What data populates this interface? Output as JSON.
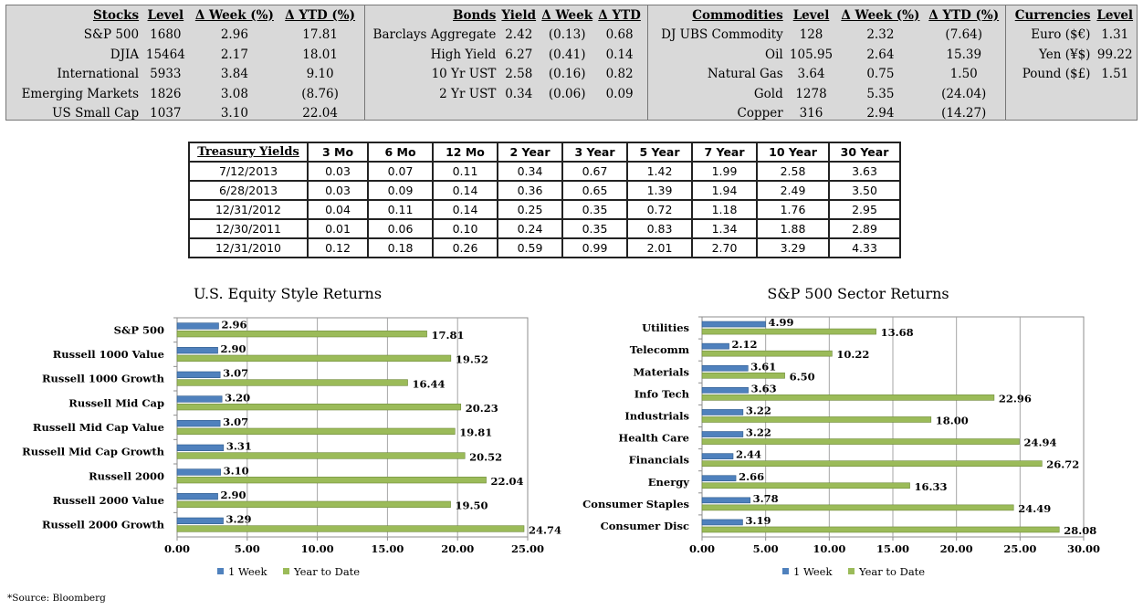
{
  "markets": {
    "stocks": {
      "headers": [
        "Stocks",
        "Level",
        "Δ Week (%)",
        "Δ YTD (%)"
      ],
      "rows": [
        [
          "S&P 500",
          "1680",
          "2.96",
          "17.81"
        ],
        [
          "DJIA",
          "15464",
          "2.17",
          "18.01"
        ],
        [
          "International",
          "5933",
          "3.84",
          "9.10"
        ],
        [
          "Emerging Markets",
          "1826",
          "3.08",
          "(8.76)"
        ],
        [
          "US Small Cap",
          "1037",
          "3.10",
          "22.04"
        ]
      ]
    },
    "bonds": {
      "headers": [
        "Bonds",
        "Yield",
        "Δ Week",
        "Δ YTD"
      ],
      "rows": [
        [
          "Barclays Aggregate",
          "2.42",
          "(0.13)",
          "0.68"
        ],
        [
          "High Yield",
          "6.27",
          "(0.41)",
          "0.14"
        ],
        [
          "10 Yr UST",
          "2.58",
          "(0.16)",
          "0.82"
        ],
        [
          "2 Yr UST",
          "0.34",
          "(0.06)",
          "0.09"
        ]
      ]
    },
    "commodities": {
      "headers": [
        "Commodities",
        "Level",
        "Δ Week (%)",
        "Δ YTD (%)"
      ],
      "rows": [
        [
          "DJ UBS Commodity",
          "128",
          "2.32",
          "(7.64)"
        ],
        [
          "Oil",
          "105.95",
          "2.64",
          "15.39"
        ],
        [
          "Natural Gas",
          "3.64",
          "0.75",
          "1.50"
        ],
        [
          "Gold",
          "1278",
          "5.35",
          "(24.04)"
        ],
        [
          "Copper",
          "316",
          "2.94",
          "(14.27)"
        ]
      ]
    },
    "currencies": {
      "headers": [
        "Currencies",
        "Level"
      ],
      "rows": [
        [
          "Euro ($€)",
          "1.31"
        ],
        [
          "Yen (¥$)",
          "99.22"
        ],
        [
          "Pound ($£)",
          "1.51"
        ]
      ]
    }
  },
  "treasury": {
    "headers": [
      "Treasury Yields",
      "3 Mo",
      "6 Mo",
      "12 Mo",
      "2 Year",
      "3 Year",
      "5 Year",
      "7 Year",
      "10 Year",
      "30 Year"
    ],
    "rows": [
      [
        "7/12/2013",
        "0.03",
        "0.07",
        "0.11",
        "0.34",
        "0.67",
        "1.42",
        "1.99",
        "2.58",
        "3.63"
      ],
      [
        "6/28/2013",
        "0.03",
        "0.09",
        "0.14",
        "0.36",
        "0.65",
        "1.39",
        "1.94",
        "2.49",
        "3.50"
      ],
      [
        "12/31/2012",
        "0.04",
        "0.11",
        "0.14",
        "0.25",
        "0.35",
        "0.72",
        "1.18",
        "1.76",
        "2.95"
      ],
      [
        "12/30/2011",
        "0.01",
        "0.06",
        "0.10",
        "0.24",
        "0.35",
        "0.83",
        "1.34",
        "1.88",
        "2.89"
      ],
      [
        "12/31/2010",
        "0.12",
        "0.18",
        "0.26",
        "0.59",
        "0.99",
        "2.01",
        "2.70",
        "3.29",
        "4.33"
      ]
    ]
  },
  "chart_data": [
    {
      "type": "bar",
      "orientation": "horizontal",
      "title": "U.S. Equity Style Returns",
      "categories": [
        "S&P 500",
        "Russell 1000 Value",
        "Russell 1000 Growth",
        "Russell Mid Cap",
        "Russell Mid Cap Value",
        "Russell Mid Cap Growth",
        "Russell 2000",
        "Russell 2000 Value",
        "Russell 2000 Growth"
      ],
      "series": [
        {
          "name": "1 Week",
          "values": [
            2.96,
            2.9,
            3.07,
            3.2,
            3.07,
            3.31,
            3.1,
            2.9,
            3.29
          ]
        },
        {
          "name": "Year to Date",
          "values": [
            17.81,
            19.52,
            16.44,
            20.23,
            19.81,
            20.52,
            22.04,
            19.5,
            24.74
          ]
        }
      ],
      "labels": [
        [
          "2.96",
          "2.90",
          "3.07",
          "3.20",
          "3.07",
          "3.31",
          "3.10",
          "2.90",
          "3.29"
        ],
        [
          "17.81",
          "19.52",
          "16.44",
          "20.23",
          "19.81",
          "20.52",
          "22.04",
          "19.50",
          "24.74"
        ]
      ],
      "xlim": [
        0,
        25
      ],
      "ticks": [
        "0.00",
        "5.00",
        "10.00",
        "15.00",
        "20.00",
        "25.00"
      ],
      "grid": true,
      "legend": "bottom",
      "colors": [
        "#4f81bd",
        "#9bbb59"
      ]
    },
    {
      "type": "bar",
      "orientation": "horizontal",
      "title": "S&P 500 Sector Returns",
      "categories": [
        "Utilities",
        "Telecomm",
        "Materials",
        "Info Tech",
        "Industrials",
        "Health Care",
        "Financials",
        "Energy",
        "Consumer Staples",
        "Consumer Disc"
      ],
      "series": [
        {
          "name": "1 Week",
          "values": [
            4.99,
            2.12,
            3.61,
            3.63,
            3.22,
            3.22,
            2.44,
            2.66,
            3.78,
            3.19
          ]
        },
        {
          "name": "Year to Date",
          "values": [
            13.68,
            10.22,
            6.5,
            22.96,
            18.0,
            24.94,
            26.72,
            16.33,
            24.49,
            28.08
          ]
        }
      ],
      "labels": [
        [
          "4.99",
          "2.12",
          "3.61",
          "3.63",
          "3.22",
          "3.22",
          "2.44",
          "2.66",
          "3.78",
          "3.19"
        ],
        [
          "13.68",
          "10.22",
          "6.50",
          "22.96",
          "18.00",
          "24.94",
          "26.72",
          "16.33",
          "24.49",
          "28.08"
        ]
      ],
      "xlim": [
        0,
        30
      ],
      "ticks": [
        "0.00",
        "5.00",
        "10.00",
        "15.00",
        "20.00",
        "25.00",
        "30.00"
      ],
      "grid": true,
      "legend": "bottom",
      "colors": [
        "#4f81bd",
        "#9bbb59"
      ]
    }
  ],
  "source_note": "*Source: Bloomberg"
}
